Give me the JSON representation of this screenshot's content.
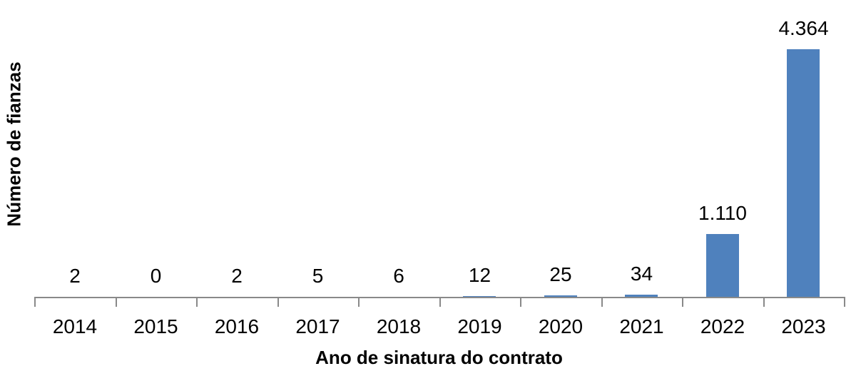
{
  "chart_data": {
    "type": "bar",
    "categories": [
      "2014",
      "2015",
      "2016",
      "2017",
      "2018",
      "2019",
      "2020",
      "2021",
      "2022",
      "2023"
    ],
    "values": [
      2,
      0,
      2,
      5,
      6,
      12,
      25,
      34,
      1110,
      4364
    ],
    "value_labels": [
      "2",
      "0",
      "2",
      "5",
      "6",
      "12",
      "25",
      "34",
      "1.110",
      "4.364"
    ],
    "title": "",
    "xlabel": "Ano de sinatura do contrato",
    "ylabel": "Número de fianzas",
    "ylim": [
      0,
      4364
    ],
    "grid": false,
    "legend": "none",
    "y_axis_ticks": "none",
    "bar_color": "#4F81BD",
    "axis_color": "#898989",
    "text_color": "#000000"
  }
}
